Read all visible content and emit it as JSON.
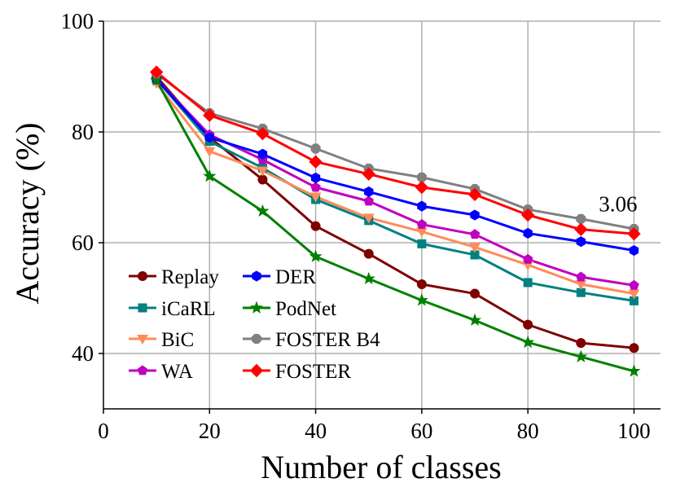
{
  "chart_data": {
    "type": "line",
    "title": "",
    "xlabel": "Number of classes",
    "ylabel": "Accuracy (%)",
    "xlim": [
      0,
      105
    ],
    "ylim": [
      30,
      100
    ],
    "xticks": [
      0,
      20,
      40,
      60,
      80,
      100
    ],
    "yticks": [
      40,
      60,
      80,
      100
    ],
    "grid": true,
    "legend_position": "lower-left",
    "x": [
      10,
      20,
      30,
      40,
      50,
      60,
      70,
      80,
      90,
      100
    ],
    "series": [
      {
        "name": "Replay",
        "color": "#7f0000",
        "marker": "circle",
        "values": [
          90.0,
          79.0,
          71.4,
          63.0,
          58.0,
          52.5,
          50.8,
          45.2,
          41.9,
          41.0
        ]
      },
      {
        "name": "iCaRL",
        "color": "#008080",
        "marker": "square",
        "values": [
          89.5,
          78.3,
          73.5,
          67.8,
          64.0,
          59.8,
          57.8,
          52.8,
          51.0,
          49.5
        ]
      },
      {
        "name": "BiC",
        "color": "#ff8c5a",
        "marker": "triangle-down",
        "values": [
          88.8,
          76.5,
          73.0,
          68.3,
          64.5,
          62.0,
          59.2,
          56.0,
          52.5,
          50.8
        ]
      },
      {
        "name": "WA",
        "color": "#c000c0",
        "marker": "pentagon",
        "values": [
          89.5,
          79.5,
          75.0,
          70.0,
          67.5,
          63.3,
          61.5,
          57.0,
          53.8,
          52.3
        ]
      },
      {
        "name": "DER",
        "color": "#0000ff",
        "marker": "hexagon",
        "values": [
          89.5,
          79.0,
          76.0,
          71.7,
          69.2,
          66.6,
          65.0,
          61.7,
          60.2,
          58.6
        ]
      },
      {
        "name": "PodNet",
        "color": "#008000",
        "marker": "star",
        "values": [
          89.3,
          72.0,
          65.7,
          57.5,
          53.5,
          49.6,
          46.0,
          42.0,
          39.4,
          36.8
        ]
      },
      {
        "name": "FOSTER B4",
        "color": "#808080",
        "marker": "octagon",
        "values": [
          90.5,
          83.4,
          80.6,
          77.0,
          73.4,
          71.8,
          69.7,
          66.0,
          64.3,
          62.5
        ]
      },
      {
        "name": "FOSTER",
        "color": "#ff0000",
        "marker": "diamond",
        "values": [
          90.8,
          83.0,
          79.7,
          74.6,
          72.4,
          70.0,
          68.7,
          65.0,
          62.4,
          61.6
        ]
      }
    ],
    "annotations": [
      {
        "text": "3.06",
        "x": 97,
        "y": 67
      }
    ]
  }
}
